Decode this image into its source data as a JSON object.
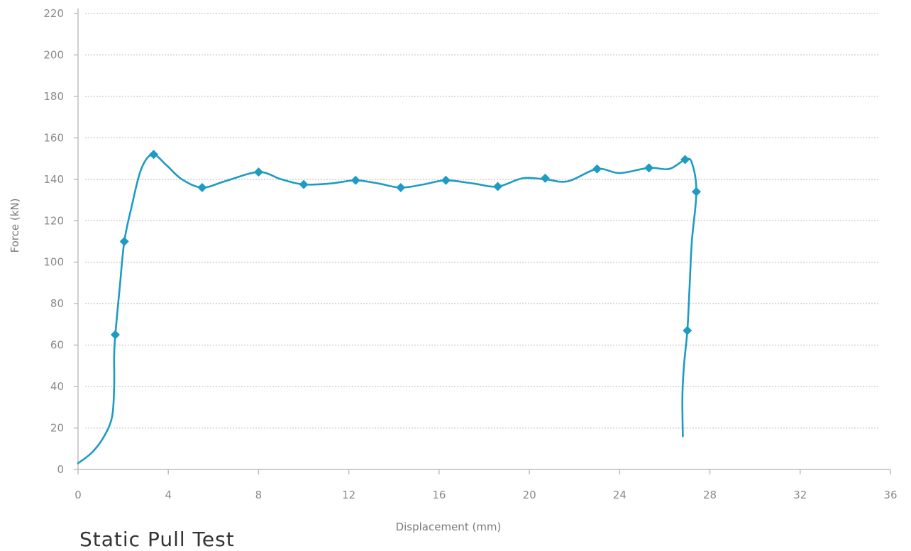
{
  "caption": "Static Pull Test",
  "chart_data": {
    "type": "line",
    "xlabel": "Displacement (mm)",
    "ylabel": "Force (kN)",
    "xlim": [
      0,
      36
    ],
    "ylim": [
      0,
      220
    ],
    "x_ticks": [
      0,
      4,
      8,
      12,
      16,
      20,
      24,
      28,
      32,
      36
    ],
    "y_ticks": [
      0,
      20,
      40,
      60,
      80,
      100,
      120,
      140,
      160,
      180,
      200,
      220
    ],
    "grid": "horizontal",
    "series_color": "#1e9bc2",
    "series": [
      {
        "curve": [
          [
            0,
            3
          ],
          [
            0.6,
            8
          ],
          [
            1.1,
            15
          ],
          [
            1.5,
            25
          ],
          [
            1.6,
            40
          ],
          [
            1.6,
            55
          ],
          [
            1.65,
            65
          ],
          [
            1.85,
            88
          ],
          [
            2.05,
            110
          ],
          [
            2.4,
            128
          ],
          [
            2.8,
            145
          ],
          [
            3.3,
            152
          ],
          [
            3.9,
            147
          ],
          [
            4.6,
            140
          ],
          [
            5.5,
            136
          ],
          [
            6.5,
            139
          ],
          [
            8.0,
            143.5
          ],
          [
            9.0,
            140
          ],
          [
            10.0,
            137.5
          ],
          [
            11.2,
            138
          ],
          [
            12.3,
            139.5
          ],
          [
            13.3,
            138
          ],
          [
            14.3,
            136
          ],
          [
            15.3,
            137.5
          ],
          [
            16.3,
            139.5
          ],
          [
            17.5,
            138
          ],
          [
            18.6,
            136.5
          ],
          [
            19.7,
            140.5
          ],
          [
            20.7,
            140
          ],
          [
            21.7,
            139
          ],
          [
            23.0,
            145
          ],
          [
            24.0,
            143
          ],
          [
            25.3,
            145.5
          ],
          [
            26.2,
            145
          ],
          [
            26.9,
            149.5
          ],
          [
            27.2,
            148
          ],
          [
            27.4,
            134
          ],
          [
            27.2,
            110
          ],
          [
            27.1,
            88
          ],
          [
            27.0,
            67
          ],
          [
            26.85,
            50
          ],
          [
            26.78,
            35
          ],
          [
            26.8,
            16
          ]
        ],
        "markers": [
          [
            1.65,
            65
          ],
          [
            2.05,
            110
          ],
          [
            3.35,
            152
          ],
          [
            5.5,
            136
          ],
          [
            8.0,
            143.5
          ],
          [
            10.0,
            137.5
          ],
          [
            12.3,
            139.5
          ],
          [
            14.3,
            136
          ],
          [
            16.3,
            139.5
          ],
          [
            18.6,
            136.5
          ],
          [
            20.7,
            140.5
          ],
          [
            23.0,
            145
          ],
          [
            25.3,
            145.5
          ],
          [
            26.9,
            149.5
          ],
          [
            27.0,
            67
          ],
          [
            27.4,
            134
          ]
        ]
      }
    ]
  }
}
